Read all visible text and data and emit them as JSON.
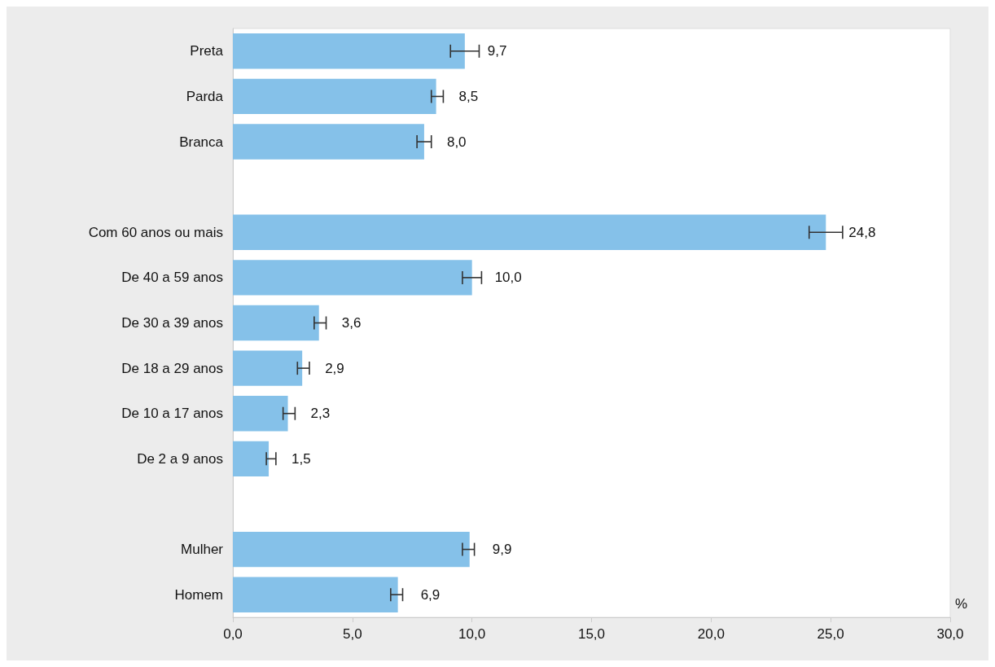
{
  "chart_data": {
    "type": "bar",
    "orientation": "horizontal",
    "xlabel": "%",
    "categories": [
      "Preta",
      "Parda",
      "Branca",
      null,
      "Com 60 anos ou mais",
      "De 40 a 59 anos",
      "De 30 a 39 anos",
      "De 18 a 29 anos",
      "De 10 a 17 anos",
      "De 2 a 9 anos",
      null,
      "Mulher",
      "Homem"
    ],
    "values": [
      9.7,
      8.5,
      8.0,
      null,
      24.8,
      10.0,
      3.6,
      2.9,
      2.3,
      1.5,
      null,
      9.9,
      6.9
    ],
    "errors": [
      [
        9.1,
        10.3
      ],
      [
        8.3,
        8.8
      ],
      [
        7.7,
        8.3
      ],
      null,
      [
        24.1,
        25.5
      ],
      [
        9.6,
        10.4
      ],
      [
        3.4,
        3.9
      ],
      [
        2.7,
        3.2
      ],
      [
        2.1,
        2.6
      ],
      [
        1.4,
        1.8
      ],
      null,
      [
        9.6,
        10.1
      ],
      [
        6.6,
        7.1
      ]
    ],
    "value_labels": [
      "9,7",
      "8,5",
      "8,0",
      null,
      "24,8",
      "10,0",
      "3,6",
      "2,9",
      "2,3",
      "1,5",
      null,
      "9,9",
      "6,9"
    ],
    "color": "#85c1e9",
    "xlim": [
      0,
      30
    ],
    "xticks": [
      {
        "value": 0,
        "label": "0,0"
      },
      {
        "value": 5,
        "label": "5,0"
      },
      {
        "value": 10,
        "label": "10,0"
      },
      {
        "value": 15,
        "label": "15,0"
      },
      {
        "value": 20,
        "label": "20,0"
      },
      {
        "value": 25,
        "label": "25,0"
      },
      {
        "value": 30,
        "label": "30,0"
      }
    ],
    "grid": false
  }
}
